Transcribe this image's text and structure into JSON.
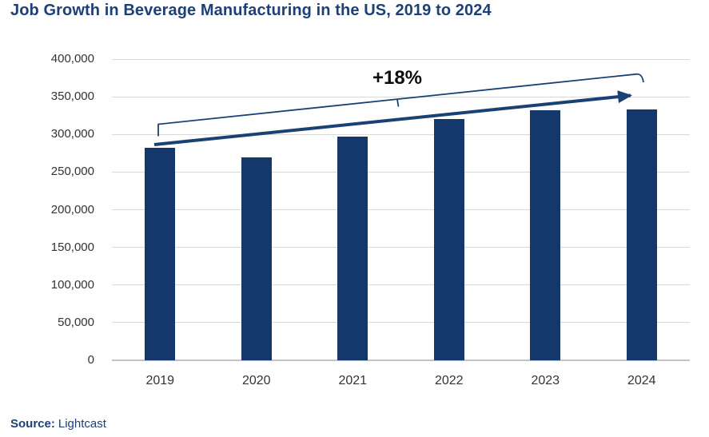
{
  "chart_data": {
    "type": "bar",
    "title": "Job Growth in Beverage Manufacturing in the US, 2019 to 2024",
    "categories": [
      "2019",
      "2020",
      "2021",
      "2022",
      "2023",
      "2024"
    ],
    "values": [
      282000,
      270000,
      297000,
      320000,
      332000,
      333000
    ],
    "xlabel": "",
    "ylabel": "",
    "ylim": [
      0,
      400000
    ],
    "ytick_interval": 50000,
    "ytick_labels": [
      "0",
      "50,000",
      "100,000",
      "150,000",
      "200,000",
      "250,000",
      "300,000",
      "350,000",
      "400,000"
    ],
    "grid": true,
    "legend_position": "none",
    "annotation": {
      "label": "+18%"
    }
  },
  "source": {
    "label": "Source:",
    "value": "Lightcast"
  },
  "colors": {
    "title": "#1c4077",
    "bar": "#14386b",
    "accent": "#1a4173",
    "grid": "#d9d9d9",
    "axis": "#c3c3c3",
    "text": "#333333"
  }
}
